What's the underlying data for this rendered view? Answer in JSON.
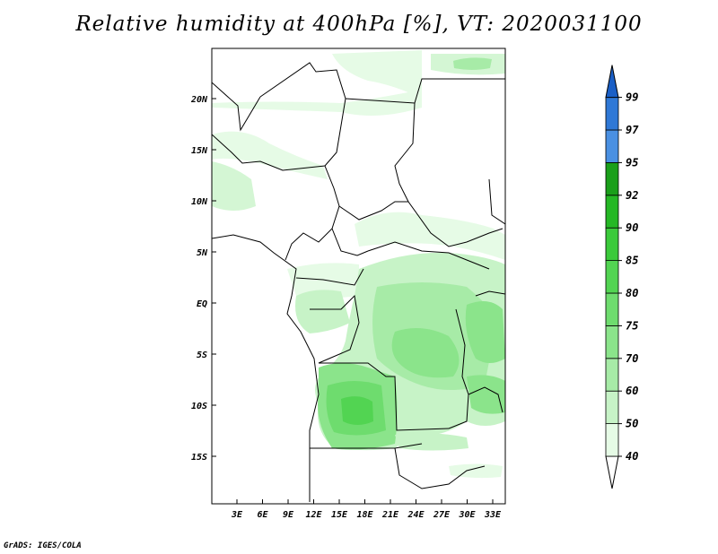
{
  "title": "Relative humidity at 400hPa [%], VT: 2020031100",
  "credit": "GrADS: IGES/COLA",
  "map": {
    "lat_labels": [
      "20N",
      "15N",
      "10N",
      "5N",
      "EQ",
      "5S",
      "10S",
      "15S"
    ],
    "lon_labels": [
      "3E",
      "6E",
      "9E",
      "12E",
      "15E",
      "18E",
      "21E",
      "24E",
      "27E",
      "30E",
      "33E"
    ]
  },
  "colorbar": {
    "levels": [
      "40",
      "50",
      "60",
      "70",
      "75",
      "80",
      "85",
      "90",
      "92",
      "95",
      "97",
      "99"
    ],
    "colors": [
      "#e6fbe6",
      "#c7f3c7",
      "#a7eba7",
      "#8be48b",
      "#6edc6e",
      "#52d452",
      "#3bca3b",
      "#25b825",
      "#1a9f1a",
      "#4a90e2",
      "#2f78d6",
      "#1a5fc6"
    ],
    "below_color": "#ffffff",
    "above_color": "#1a5fc6"
  }
}
